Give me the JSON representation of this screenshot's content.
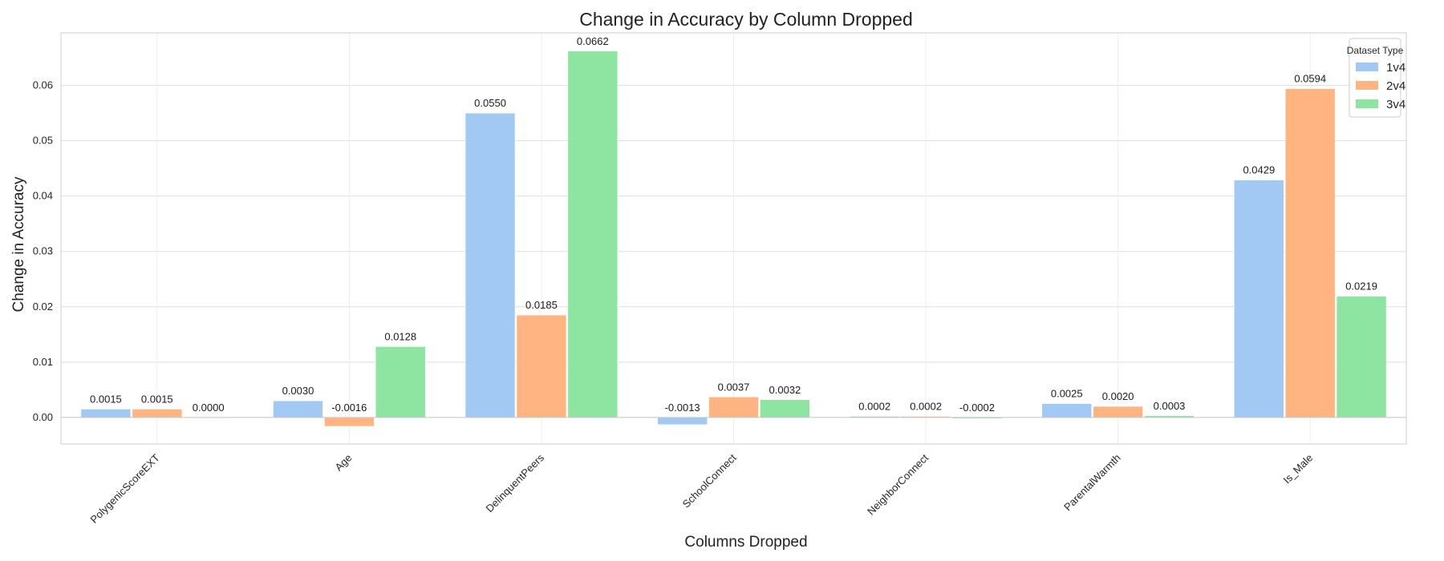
{
  "chart_data": {
    "type": "bar",
    "title": "Change in Accuracy by Column Dropped",
    "xlabel": "Columns Dropped",
    "ylabel": "Change in Accuracy",
    "categories": [
      "PolygenicScoreEXT",
      "Age",
      "DelinquentPeers",
      "SchoolConnect",
      "NeighborConnect",
      "ParentalWarmth",
      "Is_Male"
    ],
    "series": [
      {
        "name": "1v4",
        "color": "#a1c9f4",
        "values": [
          0.0015,
          0.003,
          0.055,
          -0.0013,
          0.0002,
          0.0025,
          0.0429
        ],
        "labels": [
          "0.0015",
          "0.0030",
          "0.0550",
          "-0.0013",
          "0.0002",
          "0.0025",
          "0.0429"
        ]
      },
      {
        "name": "2v4",
        "color": "#ffb482",
        "values": [
          0.0015,
          -0.0016,
          0.0185,
          0.0037,
          0.0002,
          0.002,
          0.0594
        ],
        "labels": [
          "0.0015",
          "-0.0016",
          "0.0185",
          "0.0037",
          "0.0002",
          "0.0020",
          "0.0594"
        ]
      },
      {
        "name": "3v4",
        "color": "#8de5a1",
        "values": [
          0.0,
          0.0128,
          0.0662,
          0.0032,
          -0.0002,
          0.0003,
          0.0219
        ],
        "labels": [
          "0.0000",
          "0.0128",
          "0.0662",
          "0.0032",
          "-0.0002",
          "0.0003",
          "0.0219"
        ]
      }
    ],
    "ylim": [
      -0.0048,
      0.0695
    ],
    "yticks": [
      0.0,
      0.01,
      0.02,
      0.03,
      0.04,
      0.05,
      0.06
    ],
    "ytick_labels": [
      "0.00",
      "0.01",
      "0.02",
      "0.03",
      "0.04",
      "0.05",
      "0.06"
    ],
    "grid": true,
    "legend": {
      "title": "Dataset Type",
      "placement": "top-right"
    }
  }
}
